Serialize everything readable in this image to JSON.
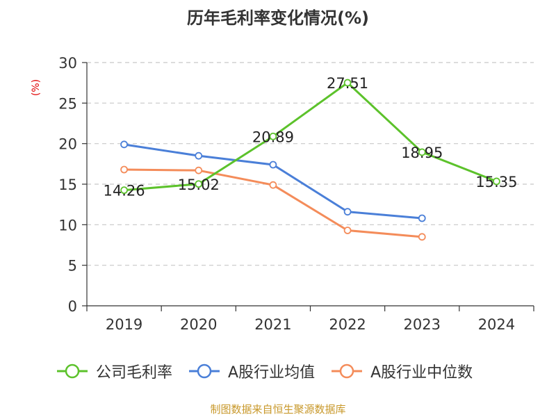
{
  "title": "历年毛利率变化情况(%)",
  "y_unit": "(%)",
  "source": "制图数据来自恒生聚源数据库",
  "chart_data": {
    "type": "line",
    "title": "历年毛利率变化情况(%)",
    "ylabel": "(%)",
    "ylim": [
      0,
      30
    ],
    "yticks": [
      0,
      5,
      10,
      15,
      20,
      25,
      30
    ],
    "categories": [
      "2019",
      "2020",
      "2021",
      "2022",
      "2023",
      "2024"
    ],
    "grid": true,
    "legend_position": "bottom",
    "series": [
      {
        "name": "公司毛利率",
        "color": "#5cc22b",
        "values": [
          14.26,
          15.02,
          20.89,
          27.51,
          18.95,
          15.35
        ],
        "labels": [
          "14.26",
          "15.02",
          "20.89",
          "27.51",
          "18.95",
          "15.35"
        ]
      },
      {
        "name": "A股行业均值",
        "color": "#4a7fd8",
        "values": [
          19.9,
          18.5,
          17.4,
          11.6,
          10.8,
          null
        ]
      },
      {
        "name": "A股行业中位数",
        "color": "#f48c5a",
        "values": [
          16.8,
          16.7,
          14.9,
          9.3,
          8.5,
          null
        ]
      }
    ]
  }
}
